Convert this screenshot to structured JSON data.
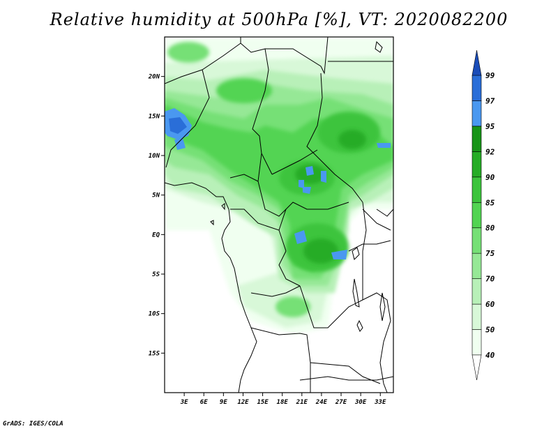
{
  "title": "Relative humidity at 500hPa [%], VT: 2020082200",
  "credit": "GrADS: IGES/COLA",
  "map": {
    "lon_range": [
      0,
      35
    ],
    "lat_range": [
      -20,
      25
    ],
    "lon_ticks": [
      {
        "value": 3,
        "label": "3E"
      },
      {
        "value": 6,
        "label": "6E"
      },
      {
        "value": 9,
        "label": "9E"
      },
      {
        "value": 12,
        "label": "12E"
      },
      {
        "value": 15,
        "label": "15E"
      },
      {
        "value": 18,
        "label": "18E"
      },
      {
        "value": 21,
        "label": "21E"
      },
      {
        "value": 24,
        "label": "24E"
      },
      {
        "value": 27,
        "label": "27E"
      },
      {
        "value": 30,
        "label": "30E"
      },
      {
        "value": 33,
        "label": "33E"
      }
    ],
    "lat_ticks": [
      {
        "value": 20,
        "label": "20N"
      },
      {
        "value": 15,
        "label": "15N"
      },
      {
        "value": 10,
        "label": "10N"
      },
      {
        "value": 5,
        "label": "5N"
      },
      {
        "value": 0,
        "label": "EQ"
      },
      {
        "value": -5,
        "label": "5S"
      },
      {
        "value": -10,
        "label": "10S"
      },
      {
        "value": -15,
        "label": "15S"
      }
    ]
  },
  "colorbar": {
    "levels": [
      {
        "label": "40",
        "color": "#f0fff0"
      },
      {
        "label": "50",
        "color": "#d8f8d8"
      },
      {
        "label": "60",
        "color": "#b8f0b8"
      },
      {
        "label": "70",
        "color": "#96e896"
      },
      {
        "label": "75",
        "color": "#76e076"
      },
      {
        "label": "80",
        "color": "#52d452"
      },
      {
        "label": "85",
        "color": "#3cc43c"
      },
      {
        "label": "90",
        "color": "#26ac26"
      },
      {
        "label": "92",
        "color": "#189418"
      },
      {
        "label": "95",
        "color": "#4a98f0"
      },
      {
        "label": "97",
        "color": "#2a6ed8"
      },
      {
        "label": "99",
        "color": "#1a4cb8"
      }
    ],
    "top_color": "#1a4cb8",
    "bottom_color": "#ffffff"
  }
}
